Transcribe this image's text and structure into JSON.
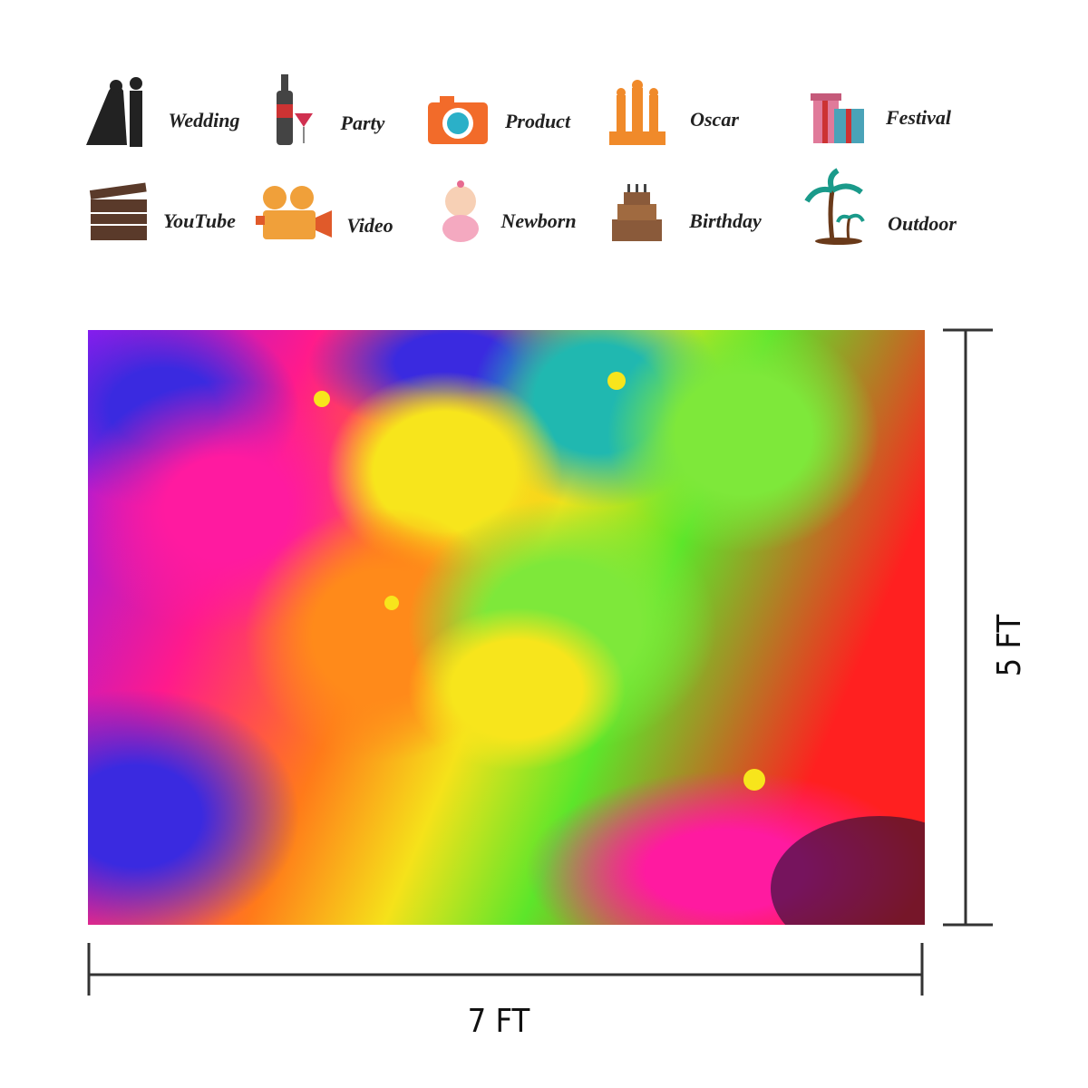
{
  "uses": [
    "Wedding",
    "Party",
    "Product",
    "Oscar",
    "Festival",
    "YouTube",
    "Video",
    "Newborn",
    "Birthday",
    "Outdoor"
  ],
  "dimensions": {
    "width": "7 FT",
    "height": "5 FT"
  }
}
